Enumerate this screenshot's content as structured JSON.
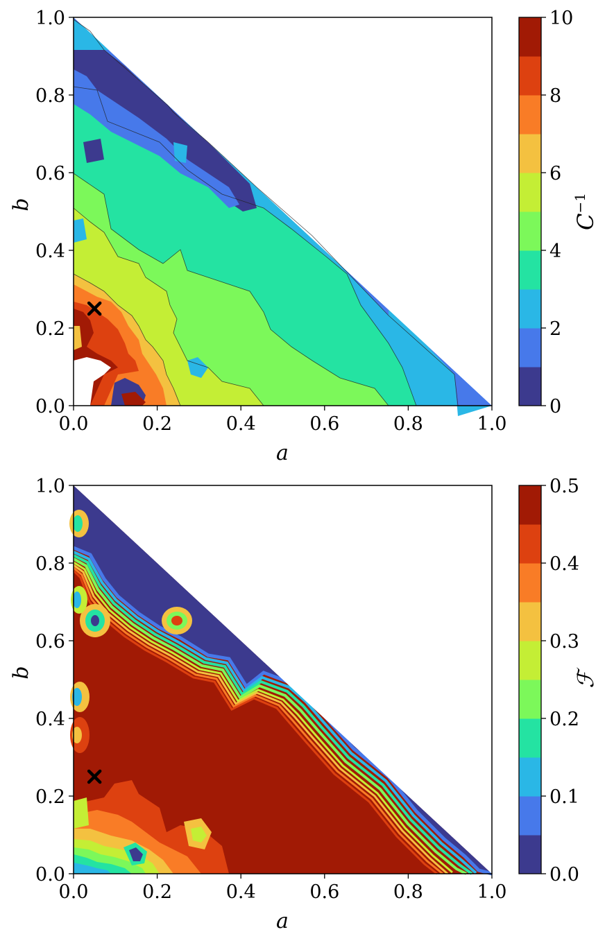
{
  "chart_data": [
    {
      "type": "contour",
      "xlabel": "a",
      "ylabel": "b",
      "xlim": [
        0.0,
        1.0
      ],
      "ylim": [
        0.0,
        1.0
      ],
      "xticks": [
        "0.0",
        "0.2",
        "0.4",
        "0.6",
        "0.8",
        "1.0"
      ],
      "yticks": [
        "0.0",
        "0.2",
        "0.4",
        "0.6",
        "0.8",
        "1.0"
      ],
      "domain": "a + b <= 1 (lower-left triangle)",
      "marker": {
        "a": 0.05,
        "b": 0.25,
        "symbol": "×"
      },
      "colorbar": {
        "label_base": "C",
        "label_sup": "−1",
        "range": [
          0,
          10
        ],
        "ticks": [
          "0",
          "2",
          "4",
          "6",
          "8",
          "10"
        ],
        "levels": [
          0,
          1,
          2,
          3,
          4,
          5,
          6,
          7,
          8,
          9,
          10
        ],
        "colors": [
          "#3c3a8e",
          "#4779ea",
          "#2ab7e6",
          "#24e3a2",
          "#7cf85a",
          "#c4ee35",
          "#f4c140",
          "#f97c26",
          "#dd4110",
          "#a11a05"
        ]
      },
      "trend": "C^-1 is highest (8–10) near the origin region a < 0.2, b < 0.3 and decreases toward the line a + b = 1, reaching 0–1 in a band near b ≈ 0.8–0.9 for small a.",
      "value_grid": {
        "description": "approximate C^-1 levels sampled at (a, b)",
        "points": [
          {
            "a": 0.02,
            "b": 0.92,
            "v": 1.5
          },
          {
            "a": 0.05,
            "b": 0.85,
            "v": 0.5
          },
          {
            "a": 0.2,
            "b": 0.72,
            "v": 0.5
          },
          {
            "a": 0.35,
            "b": 0.55,
            "v": 1.5
          },
          {
            "a": 0.05,
            "b": 0.7,
            "v": 3.5
          },
          {
            "a": 0.3,
            "b": 0.5,
            "v": 3.5
          },
          {
            "a": 0.6,
            "b": 0.25,
            "v": 2.5
          },
          {
            "a": 0.85,
            "b": 0.08,
            "v": 2.5
          },
          {
            "a": 0.05,
            "b": 0.55,
            "v": 4.5
          },
          {
            "a": 0.4,
            "b": 0.3,
            "v": 3.5
          },
          {
            "a": 0.55,
            "b": 0.05,
            "v": 3.5
          },
          {
            "a": 0.2,
            "b": 0.3,
            "v": 4.5
          },
          {
            "a": 0.1,
            "b": 0.35,
            "v": 5.5
          },
          {
            "a": 0.3,
            "b": 0.05,
            "v": 5.5
          },
          {
            "a": 0.08,
            "b": 0.25,
            "v": 7.5
          },
          {
            "a": 0.1,
            "b": 0.18,
            "v": 8.5
          },
          {
            "a": 0.04,
            "b": 0.15,
            "v": 9.5
          }
        ]
      }
    },
    {
      "type": "contour",
      "xlabel": "a",
      "ylabel": "b",
      "xlim": [
        0.0,
        1.0
      ],
      "ylim": [
        0.0,
        1.0
      ],
      "xticks": [
        "0.0",
        "0.2",
        "0.4",
        "0.6",
        "0.8",
        "1.0"
      ],
      "yticks": [
        "0.0",
        "0.2",
        "0.4",
        "0.6",
        "0.8",
        "1.0"
      ],
      "domain": "a + b <= 1 (lower-left triangle)",
      "marker": {
        "a": 0.05,
        "b": 0.25,
        "symbol": "×"
      },
      "colorbar": {
        "label": "ℱ",
        "range": [
          0.0,
          0.5
        ],
        "ticks": [
          "0.0",
          "0.1",
          "0.2",
          "0.3",
          "0.4",
          "0.5"
        ],
        "levels": [
          0.0,
          0.05,
          0.1,
          0.15,
          0.2,
          0.25,
          0.3,
          0.35,
          0.4,
          0.45,
          0.5
        ],
        "colors": [
          "#3c3a8e",
          "#4779ea",
          "#2ab7e6",
          "#24e3a2",
          "#7cf85a",
          "#c4ee35",
          "#f4c140",
          "#f97c26",
          "#dd4110",
          "#a11a05"
        ]
      },
      "trend": "ℱ is near its maximum (0.45–0.5) over most of the triangle, drops sharply to 0–0.05 in a band along the hypotenuse and near b ≈ 0.85–1.0, and is lower (0.3–0.45) near the bottom-left corner.",
      "value_grid": {
        "description": "approximate ℱ levels sampled at (a, b)",
        "points": [
          {
            "a": 0.05,
            "b": 0.9,
            "v": 0.02
          },
          {
            "a": 0.25,
            "b": 0.7,
            "v": 0.02
          },
          {
            "a": 0.42,
            "b": 0.52,
            "v": 0.02
          },
          {
            "a": 0.3,
            "b": 0.4,
            "v": 0.48
          },
          {
            "a": 0.6,
            "b": 0.2,
            "v": 0.48
          },
          {
            "a": 0.1,
            "b": 0.6,
            "v": 0.48
          },
          {
            "a": 0.08,
            "b": 0.12,
            "v": 0.42
          },
          {
            "a": 0.05,
            "b": 0.05,
            "v": 0.33
          },
          {
            "a": 0.15,
            "b": 0.05,
            "v": 0.1
          },
          {
            "a": 0.3,
            "b": 0.1,
            "v": 0.28
          }
        ]
      }
    }
  ]
}
